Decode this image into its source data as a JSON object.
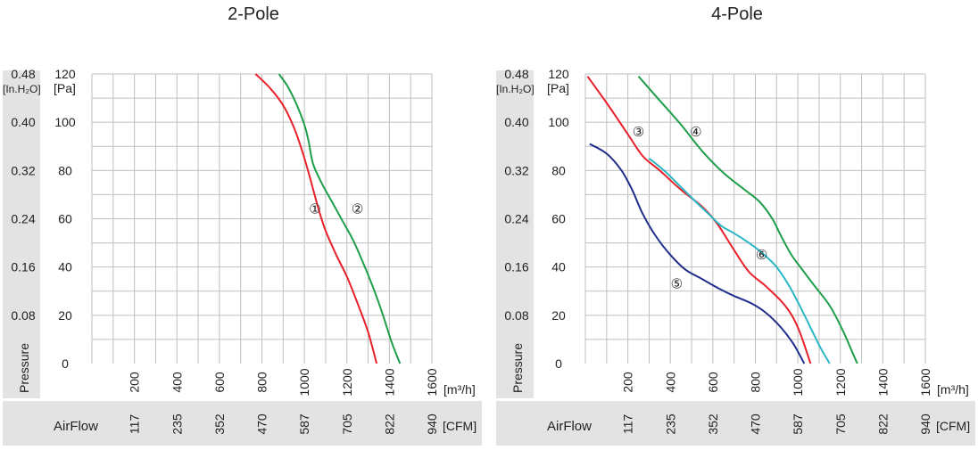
{
  "chart_data": [
    {
      "type": "line",
      "title": "2-Pole",
      "left_unit_label": "[In.H₂O]",
      "y_unit_label": "[Pa]",
      "ylabel": "Pressure",
      "xlabel": "AirFlow",
      "x_unit_label": "[m³/h]",
      "cfm_unit_label": "[CFM]",
      "xlim": [
        0,
        1600
      ],
      "ylim": [
        0,
        120
      ],
      "x_ticks": [
        "200",
        "400",
        "600",
        "800",
        "1000",
        "1200",
        "1400",
        "1600"
      ],
      "cfm_ticks": [
        "117",
        "235",
        "352",
        "470",
        "587",
        "705",
        "822",
        "940"
      ],
      "y_ticks": [
        "0",
        "20",
        "40",
        "60",
        "80",
        "100",
        "120"
      ],
      "inh2o_ticks": [
        "0.08",
        "0.16",
        "0.24",
        "0.32",
        "0.40",
        "0.48"
      ],
      "grid": true,
      "series": [
        {
          "name": "①",
          "color": "#e8202a",
          "label_at": [
            1050,
            64
          ],
          "points": [
            [
              770,
              120
            ],
            [
              840,
              114
            ],
            [
              900,
              107
            ],
            [
              950,
              98
            ],
            [
              990,
              88
            ],
            [
              1020,
              79
            ],
            [
              1045,
              71
            ],
            [
              1070,
              63
            ],
            [
              1100,
              55
            ],
            [
              1150,
              45
            ],
            [
              1200,
              36
            ],
            [
              1250,
              25
            ],
            [
              1300,
              13
            ],
            [
              1340,
              0
            ]
          ]
        },
        {
          "name": "②",
          "color": "#1e9e4a",
          "label_at": [
            1250,
            64
          ],
          "points": [
            [
              880,
              120
            ],
            [
              920,
              115
            ],
            [
              960,
              108
            ],
            [
              1000,
              99
            ],
            [
              1020,
              92
            ],
            [
              1040,
              83
            ],
            [
              1080,
              75
            ],
            [
              1130,
              67
            ],
            [
              1180,
              59
            ],
            [
              1230,
              51
            ],
            [
              1280,
              41
            ],
            [
              1330,
              30
            ],
            [
              1370,
              20
            ],
            [
              1410,
              9
            ],
            [
              1450,
              0
            ]
          ]
        }
      ]
    },
    {
      "type": "line",
      "title": "4-Pole",
      "left_unit_label": "[In.H₂O]",
      "y_unit_label": "[Pa]",
      "ylabel": "Pressure",
      "xlabel": "AirFlow",
      "x_unit_label": "[m³/h]",
      "cfm_unit_label": "[CFM]",
      "xlim": [
        0,
        1600
      ],
      "ylim": [
        0,
        120
      ],
      "x_ticks": [
        "200",
        "400",
        "600",
        "800",
        "1000",
        "1200",
        "1400",
        "1600"
      ],
      "cfm_ticks": [
        "117",
        "235",
        "352",
        "470",
        "587",
        "705",
        "822",
        "940"
      ],
      "y_ticks": [
        "0",
        "20",
        "40",
        "60",
        "80",
        "100",
        "120"
      ],
      "inh2o_ticks": [
        "0.08",
        "0.16",
        "0.24",
        "0.32",
        "0.40",
        "0.48"
      ],
      "grid": true,
      "series": [
        {
          "name": "③",
          "color": "#e8202a",
          "label_at": [
            250,
            96
          ],
          "points": [
            [
              10,
              119
            ],
            [
              100,
              108
            ],
            [
              200,
              95
            ],
            [
              270,
              86
            ],
            [
              350,
              80
            ],
            [
              450,
              72
            ],
            [
              550,
              65
            ],
            [
              620,
              58
            ],
            [
              700,
              47
            ],
            [
              770,
              38
            ],
            [
              850,
              32
            ],
            [
              940,
              24
            ],
            [
              1000,
              15
            ],
            [
              1060,
              0
            ]
          ]
        },
        {
          "name": "④",
          "color": "#1e9e4a",
          "label_at": [
            520,
            96
          ],
          "points": [
            [
              250,
              119
            ],
            [
              350,
              109
            ],
            [
              450,
              99
            ],
            [
              550,
              88
            ],
            [
              650,
              79
            ],
            [
              750,
              72
            ],
            [
              820,
              67
            ],
            [
              880,
              60
            ],
            [
              920,
              53
            ],
            [
              970,
              45
            ],
            [
              1020,
              39
            ],
            [
              1080,
              32
            ],
            [
              1150,
              24
            ],
            [
              1210,
              14
            ],
            [
              1250,
              6
            ],
            [
              1280,
              0
            ]
          ]
        },
        {
          "name": "⑤",
          "color": "#1f2e8a",
          "label_at": [
            430,
            33
          ],
          "points": [
            [
              20,
              91
            ],
            [
              100,
              87
            ],
            [
              170,
              80
            ],
            [
              220,
              72
            ],
            [
              270,
              62
            ],
            [
              330,
              53
            ],
            [
              400,
              45
            ],
            [
              470,
              39
            ],
            [
              550,
              35
            ],
            [
              630,
              31
            ],
            [
              700,
              28
            ],
            [
              780,
              25
            ],
            [
              850,
              21
            ],
            [
              920,
              15
            ],
            [
              980,
              8
            ],
            [
              1030,
              0
            ]
          ]
        },
        {
          "name": "⑥",
          "color": "#2ab7c4",
          "label_at": [
            830,
            45
          ],
          "points": [
            [
              300,
              85
            ],
            [
              370,
              80
            ],
            [
              440,
              74
            ],
            [
              520,
              67
            ],
            [
              580,
              62
            ],
            [
              640,
              57
            ],
            [
              700,
              54
            ],
            [
              770,
              50
            ],
            [
              830,
              46
            ],
            [
              900,
              40
            ],
            [
              960,
              32
            ],
            [
              1020,
              22
            ],
            [
              1070,
              13
            ],
            [
              1110,
              6
            ],
            [
              1150,
              0
            ]
          ]
        }
      ]
    }
  ]
}
